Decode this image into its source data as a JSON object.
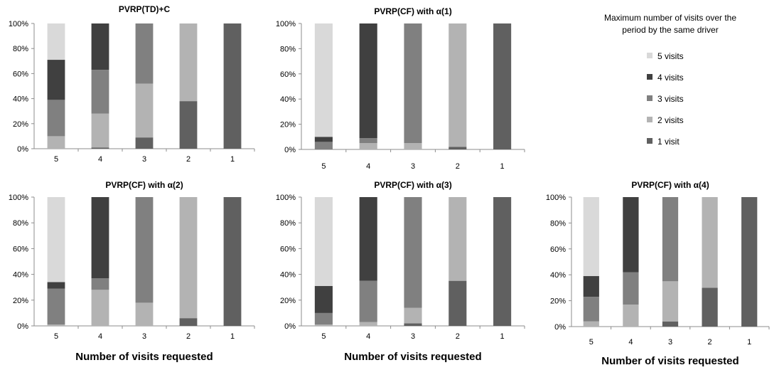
{
  "legend": {
    "title_line1": "Maximum number of visits over the",
    "title_line2": "period by the same driver",
    "items": [
      {
        "label": "5 visits",
        "color": "#d9d9d9"
      },
      {
        "label": "4 visits",
        "color": "#404040"
      },
      {
        "label": "3 visits",
        "color": "#808080"
      },
      {
        "label": "2 visits",
        "color": "#b3b3b3"
      },
      {
        "label": "1 visit",
        "color": "#606060"
      }
    ]
  },
  "chart_data": [
    {
      "type": "bar",
      "stacked": true,
      "title": "PVRP(TD)+C",
      "xlabel": "",
      "ylabel": "",
      "ylim": [
        0,
        100
      ],
      "yticks": [
        "0%",
        "20%",
        "40%",
        "60%",
        "80%",
        "100%"
      ],
      "categories": [
        "5",
        "4",
        "3",
        "2",
        "1"
      ],
      "series": [
        {
          "name": "1 visit",
          "values": [
            0,
            1,
            9,
            38,
            100
          ]
        },
        {
          "name": "2 visits",
          "values": [
            10,
            27,
            43,
            62,
            0
          ]
        },
        {
          "name": "3 visits",
          "values": [
            29,
            35,
            48,
            0,
            0
          ]
        },
        {
          "name": "4 visits",
          "values": [
            32,
            37,
            0,
            0,
            0
          ]
        },
        {
          "name": "5 visits",
          "values": [
            29,
            0,
            0,
            0,
            0
          ]
        }
      ]
    },
    {
      "type": "bar",
      "stacked": true,
      "title": "PVRP(CF) with α(1)",
      "xlabel": "",
      "ylabel": "",
      "ylim": [
        0,
        100
      ],
      "yticks": [
        "0%",
        "20%",
        "40%",
        "60%",
        "80%",
        "100%"
      ],
      "categories": [
        "5",
        "4",
        "3",
        "2",
        "1"
      ],
      "series": [
        {
          "name": "1 visit",
          "values": [
            0,
            0,
            0,
            2,
            100
          ]
        },
        {
          "name": "2 visits",
          "values": [
            0,
            5,
            5,
            98,
            0
          ]
        },
        {
          "name": "3 visits",
          "values": [
            6,
            4,
            95,
            0,
            0
          ]
        },
        {
          "name": "4 visits",
          "values": [
            4,
            91,
            0,
            0,
            0
          ]
        },
        {
          "name": "5 visits",
          "values": [
            90,
            0,
            0,
            0,
            0
          ]
        }
      ]
    },
    {
      "type": "bar",
      "stacked": true,
      "title": "PVRP(CF) with α(2)",
      "xlabel": "Number of visits requested",
      "ylabel": "",
      "ylim": [
        0,
        100
      ],
      "yticks": [
        "0%",
        "20%",
        "40%",
        "60%",
        "80%",
        "100%"
      ],
      "categories": [
        "5",
        "4",
        "3",
        "2",
        "1"
      ],
      "series": [
        {
          "name": "1 visit",
          "values": [
            0,
            0,
            0,
            6,
            100
          ]
        },
        {
          "name": "2 visits",
          "values": [
            1,
            28,
            18,
            94,
            0
          ]
        },
        {
          "name": "3 visits",
          "values": [
            28,
            9,
            82,
            0,
            0
          ]
        },
        {
          "name": "4 visits",
          "values": [
            5,
            63,
            0,
            0,
            0
          ]
        },
        {
          "name": "5 visits",
          "values": [
            66,
            0,
            0,
            0,
            0
          ]
        }
      ]
    },
    {
      "type": "bar",
      "stacked": true,
      "title": "PVRP(CF) with α(3)",
      "xlabel": "Number of visits requested",
      "ylabel": "",
      "ylim": [
        0,
        100
      ],
      "yticks": [
        "0%",
        "20%",
        "40%",
        "60%",
        "80%",
        "100%"
      ],
      "categories": [
        "5",
        "4",
        "3",
        "2",
        "1"
      ],
      "series": [
        {
          "name": "1 visit",
          "values": [
            0,
            0,
            2,
            35,
            100
          ]
        },
        {
          "name": "2 visits",
          "values": [
            1,
            3,
            12,
            65,
            0
          ]
        },
        {
          "name": "3 visits",
          "values": [
            9,
            32,
            86,
            0,
            0
          ]
        },
        {
          "name": "4 visits",
          "values": [
            21,
            65,
            0,
            0,
            0
          ]
        },
        {
          "name": "5 visits",
          "values": [
            69,
            0,
            0,
            0,
            0
          ]
        }
      ]
    },
    {
      "type": "bar",
      "stacked": true,
      "title": "PVRP(CF) with α(4)",
      "xlabel": "Number of visits requested",
      "ylabel": "",
      "ylim": [
        0,
        100
      ],
      "yticks": [
        "0%",
        "20%",
        "40%",
        "60%",
        "80%",
        "100%"
      ],
      "categories": [
        "5",
        "4",
        "3",
        "2",
        "1"
      ],
      "series": [
        {
          "name": "1 visit",
          "values": [
            0,
            0,
            4,
            30,
            100
          ]
        },
        {
          "name": "2 visits",
          "values": [
            4,
            17,
            31,
            70,
            0
          ]
        },
        {
          "name": "3 visits",
          "values": [
            19,
            25,
            65,
            0,
            0
          ]
        },
        {
          "name": "4 visits",
          "values": [
            16,
            58,
            0,
            0,
            0
          ]
        },
        {
          "name": "5 visits",
          "values": [
            61,
            0,
            0,
            0,
            0
          ]
        }
      ]
    }
  ]
}
